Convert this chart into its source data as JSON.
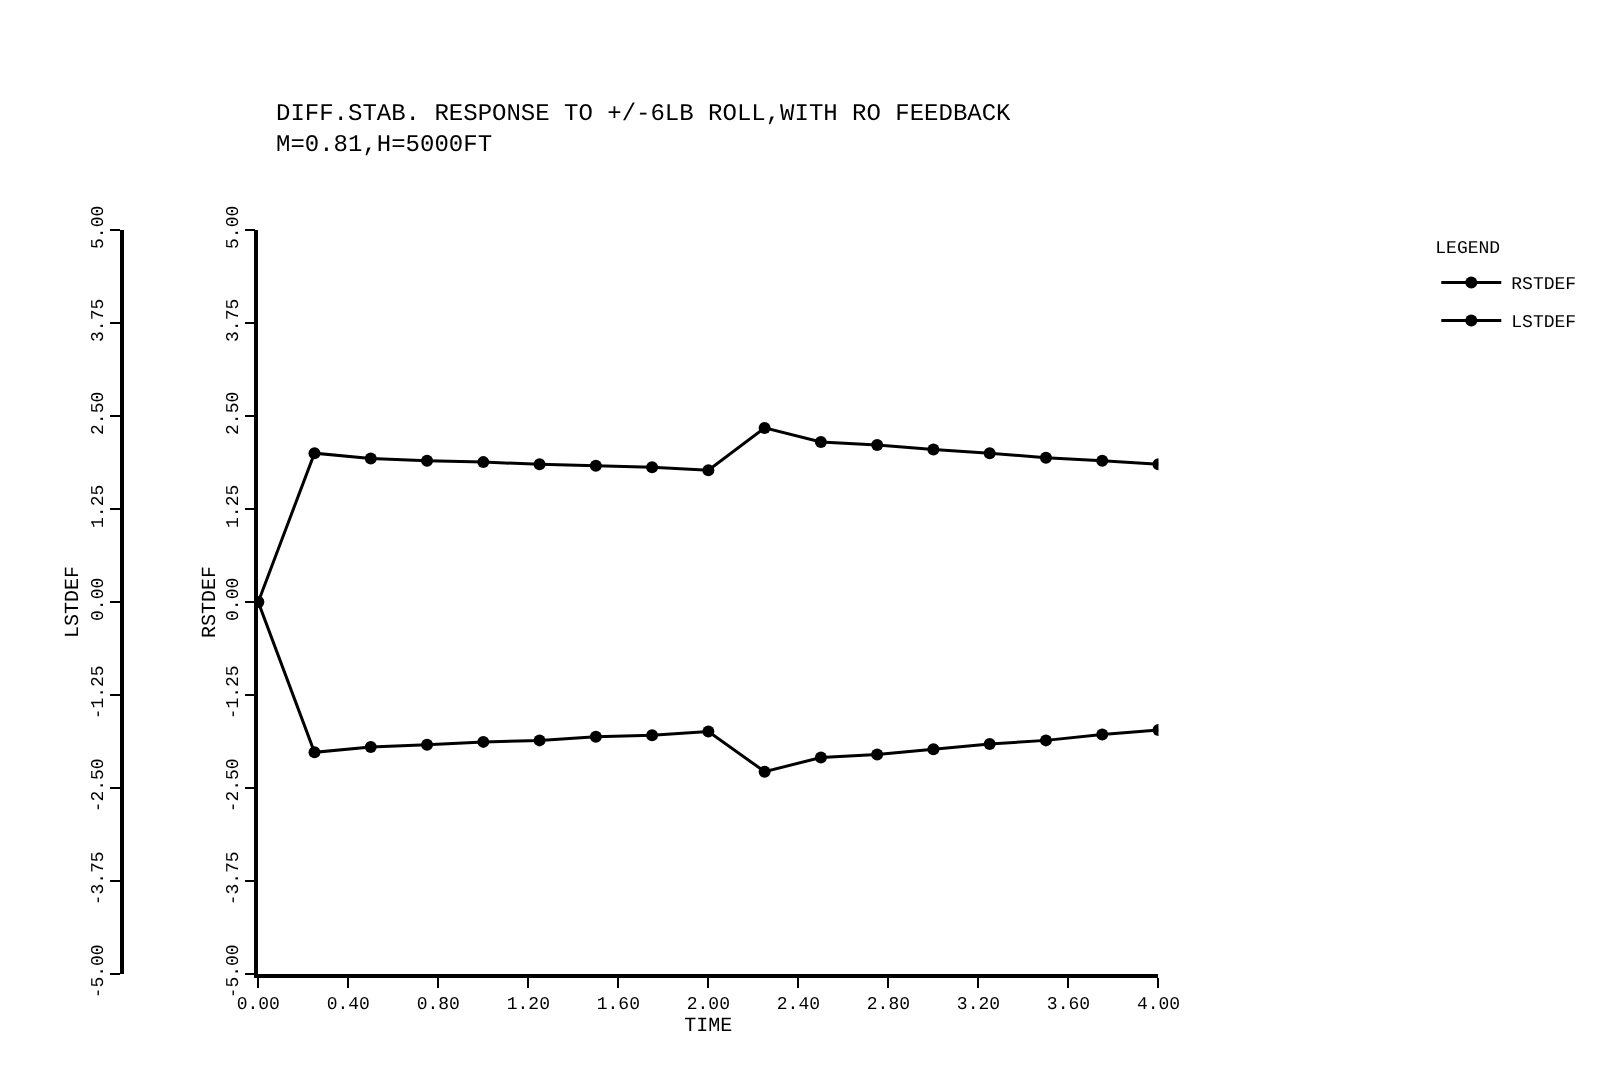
{
  "chart_data": {
    "type": "line",
    "title": "DIFF.STAB. RESPONSE TO +/-6LB ROLL,WITH RO FEEDBACK",
    "subtitle": "M=0.81,H=5000FT",
    "xlabel": "TIME",
    "ylabel": "LSTDEF",
    "y2label": "RSTDEF",
    "legend_title": "LEGEND",
    "legend": "top right",
    "marker": "circle",
    "grid": false,
    "x": [
      0,
      0.25,
      0.5,
      0.75,
      1,
      1.25,
      1.5,
      1.75,
      2,
      2.25,
      2.5,
      2.75,
      3,
      3.25,
      3.5,
      3.75,
      4
    ],
    "series": [
      {
        "name": "RSTDEF",
        "color": "#000000",
        "axis": "y2",
        "values": [
          0,
          2.0,
          1.93,
          1.9,
          1.88,
          1.85,
          1.83,
          1.81,
          1.77,
          2.34,
          2.15,
          2.11,
          2.05,
          2.0,
          1.94,
          1.9,
          1.85
        ]
      },
      {
        "name": "LSTDEF",
        "color": "#000000",
        "values": [
          0,
          -2.02,
          -1.95,
          -1.92,
          -1.88,
          -1.86,
          -1.81,
          -1.79,
          -1.74,
          -2.28,
          -2.09,
          -2.05,
          -1.98,
          -1.91,
          -1.86,
          -1.78,
          -1.72
        ]
      }
    ],
    "xlim": [
      0,
      4
    ],
    "xticks": [
      {
        "value": 0,
        "label": "0.00"
      },
      {
        "value": 0.4,
        "label": "0.40"
      },
      {
        "value": 0.8,
        "label": "0.80"
      },
      {
        "value": 1.2,
        "label": "1.20"
      },
      {
        "value": 1.6,
        "label": "1.60"
      },
      {
        "value": 2,
        "label": "2.00"
      },
      {
        "value": 2.4,
        "label": "2.40"
      },
      {
        "value": 2.8,
        "label": "2.80"
      },
      {
        "value": 3.2,
        "label": "3.20"
      },
      {
        "value": 3.6,
        "label": "3.60"
      },
      {
        "value": 4,
        "label": "4.00"
      }
    ],
    "ylim": [
      -5,
      5
    ],
    "yticks": [
      {
        "value": -5,
        "label": "-5.00"
      },
      {
        "value": -3.75,
        "label": "-3.75"
      },
      {
        "value": -2.5,
        "label": "-2.50"
      },
      {
        "value": -1.25,
        "label": "-1.25"
      },
      {
        "value": 0,
        "label": "0.00"
      },
      {
        "value": 1.25,
        "label": "1.25"
      },
      {
        "value": 2.5,
        "label": "2.50"
      },
      {
        "value": 3.75,
        "label": "3.75"
      },
      {
        "value": 5,
        "label": "5.00"
      }
    ],
    "y2lim": [
      -5,
      5
    ],
    "y2ticks": [
      {
        "value": -5,
        "label": "-5.00"
      },
      {
        "value": -3.75,
        "label": "-3.75"
      },
      {
        "value": -2.5,
        "label": "-2.50"
      },
      {
        "value": -1.25,
        "label": "-1.25"
      },
      {
        "value": 0,
        "label": "0.00"
      },
      {
        "value": 1.25,
        "label": "1.25"
      },
      {
        "value": 2.5,
        "label": "2.50"
      },
      {
        "value": 3.75,
        "label": "3.75"
      },
      {
        "value": 5,
        "label": "5.00"
      }
    ]
  }
}
